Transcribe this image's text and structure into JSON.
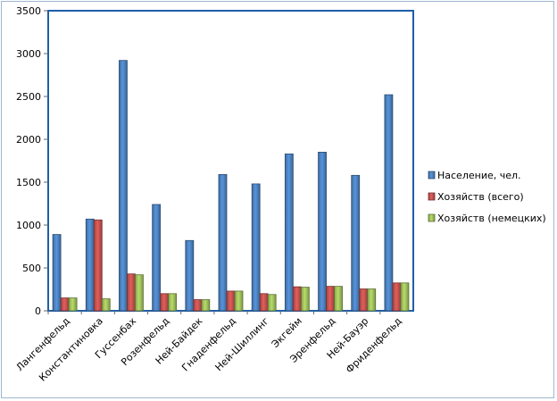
{
  "chart_data": {
    "type": "bar",
    "title": "",
    "xlabel": "",
    "ylabel": "",
    "ylim": [
      0,
      3500
    ],
    "yticks": [
      0,
      500,
      1000,
      1500,
      2000,
      2500,
      3000,
      3500
    ],
    "categories": [
      "Лангенфельд",
      "Константиновка",
      "Гуссенбах",
      "Розенфельд",
      "Ней-Байдек",
      "Гнаденфельд",
      "Ней-Шиллинг",
      "Экгейм",
      "Эренфельд",
      "Ней-Бауэр",
      "Фриденфельд"
    ],
    "series": [
      {
        "name": "Население, чел.",
        "color": "#4a7ebb",
        "values": [
          890,
          1070,
          2920,
          1240,
          820,
          1590,
          1480,
          1830,
          1850,
          1580,
          2520
        ]
      },
      {
        "name": "Хозяйств (всего)",
        "color": "#c0504d",
        "values": [
          150,
          1060,
          430,
          200,
          130,
          230,
          200,
          280,
          285,
          255,
          325
        ]
      },
      {
        "name": "Хозяйств (немецких)",
        "color": "#9bbb59",
        "values": [
          150,
          140,
          420,
          200,
          130,
          230,
          190,
          275,
          285,
          255,
          325
        ]
      }
    ],
    "grid": false,
    "legend_position": "right"
  }
}
